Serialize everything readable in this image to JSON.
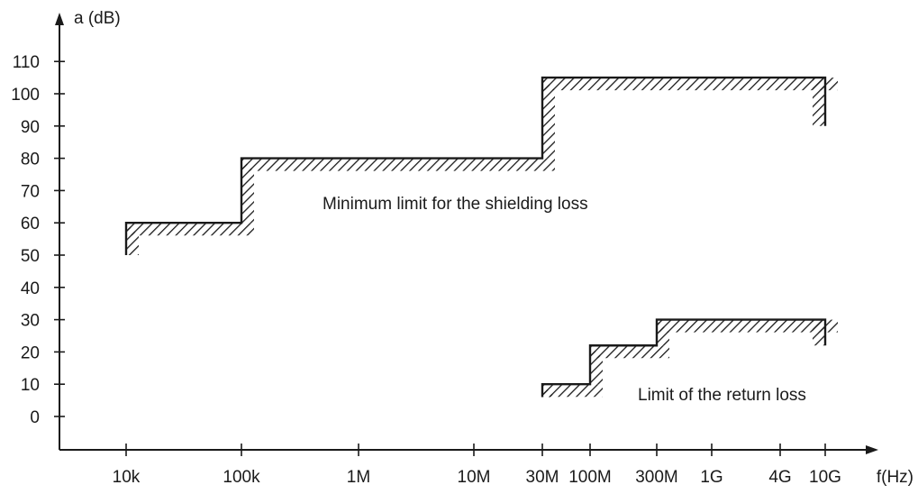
{
  "chart_data": {
    "type": "line",
    "title": "",
    "xlabel": "f(Hz)",
    "ylabel": "a (dB)",
    "x_scale": "log",
    "x_ticks": [
      "10k",
      "100k",
      "1M",
      "10M",
      "30M",
      "100M",
      "300M",
      "1G",
      "4G",
      "10G"
    ],
    "y_ticks": [
      "0",
      "10",
      "20",
      "30",
      "40",
      "50",
      "60",
      "70",
      "80",
      "90",
      "100",
      "110"
    ],
    "ylim": [
      -10,
      120
    ],
    "grid": false,
    "series": [
      {
        "label": "Minimum limit for the shielding loss",
        "points": [
          {
            "x": "10k",
            "y": 50
          },
          {
            "x": "10k",
            "y": 60
          },
          {
            "x": "100k",
            "y": 60
          },
          {
            "x": "100k",
            "y": 80
          },
          {
            "x": "30M",
            "y": 80
          },
          {
            "x": "30M",
            "y": 105
          },
          {
            "x": "10G",
            "y": 105
          },
          {
            "x": "10G",
            "y": 90
          }
        ]
      },
      {
        "label": "Limit of the return loss",
        "points": [
          {
            "x": "30M",
            "y": 6
          },
          {
            "x": "30M",
            "y": 10
          },
          {
            "x": "100M",
            "y": 10
          },
          {
            "x": "100M",
            "y": 22
          },
          {
            "x": "300M",
            "y": 22
          },
          {
            "x": "300M",
            "y": 30
          },
          {
            "x": "10G",
            "y": 30
          },
          {
            "x": "10G",
            "y": 22
          }
        ]
      }
    ]
  }
}
